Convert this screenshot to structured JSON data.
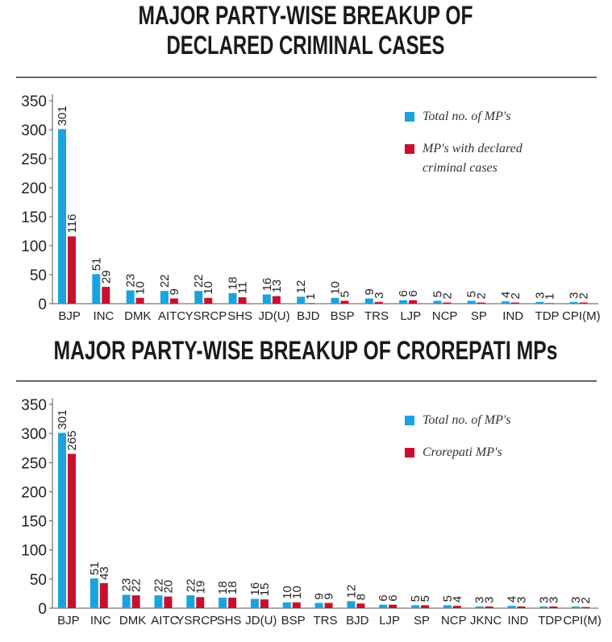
{
  "chart_data": [
    {
      "type": "bar",
      "title": [
        "MAJOR PARTY-WISE BREAKUP OF",
        "DECLARED CRIMINAL CASES"
      ],
      "categories": [
        "BJP",
        "INC",
        "DMK",
        "AITC",
        "YSRCP",
        "SHS",
        "JD(U)",
        "BJD",
        "BSP",
        "TRS",
        "LJP",
        "NCP",
        "SP",
        "IND",
        "TDP",
        "CPI(M)"
      ],
      "series": [
        {
          "name": "Total no. of MP's",
          "color": "#1aa3df",
          "values": [
            301,
            51,
            23,
            22,
            22,
            18,
            16,
            12,
            10,
            9,
            6,
            5,
            5,
            4,
            3,
            3
          ]
        },
        {
          "name": "MP's with declared criminal cases",
          "color": "#c8102e",
          "values": [
            116,
            29,
            10,
            9,
            10,
            11,
            13,
            1,
            5,
            3,
            6,
            2,
            2,
            2,
            1,
            2
          ]
        }
      ],
      "ylim": [
        0,
        350
      ],
      "yticks": [
        0,
        50,
        100,
        150,
        200,
        250,
        300,
        350
      ],
      "grid": false
    },
    {
      "type": "bar",
      "title": [
        "MAJOR PARTY-WISE BREAKUP OF CROREPATI MPs"
      ],
      "categories": [
        "BJP",
        "INC",
        "DMK",
        "AITC",
        "YSRCP",
        "SHS",
        "JD(U)",
        "BSP",
        "TRS",
        "BJD",
        "LJP",
        "SP",
        "NCP",
        "JKNC",
        "IND",
        "TDP",
        "CPI(M)"
      ],
      "series": [
        {
          "name": "Total no. of MP's",
          "color": "#1aa3df",
          "values": [
            301,
            51,
            23,
            22,
            22,
            18,
            16,
            10,
            9,
            12,
            6,
            5,
            5,
            3,
            4,
            3,
            3
          ]
        },
        {
          "name": "Crorepati MP's",
          "color": "#c8102e",
          "values": [
            265,
            43,
            22,
            20,
            19,
            18,
            15,
            10,
            9,
            8,
            6,
            5,
            4,
            3,
            3,
            3,
            2
          ]
        }
      ],
      "ylim": [
        0,
        350
      ],
      "yticks": [
        0,
        50,
        100,
        150,
        200,
        250,
        300,
        350
      ],
      "grid": false
    }
  ]
}
